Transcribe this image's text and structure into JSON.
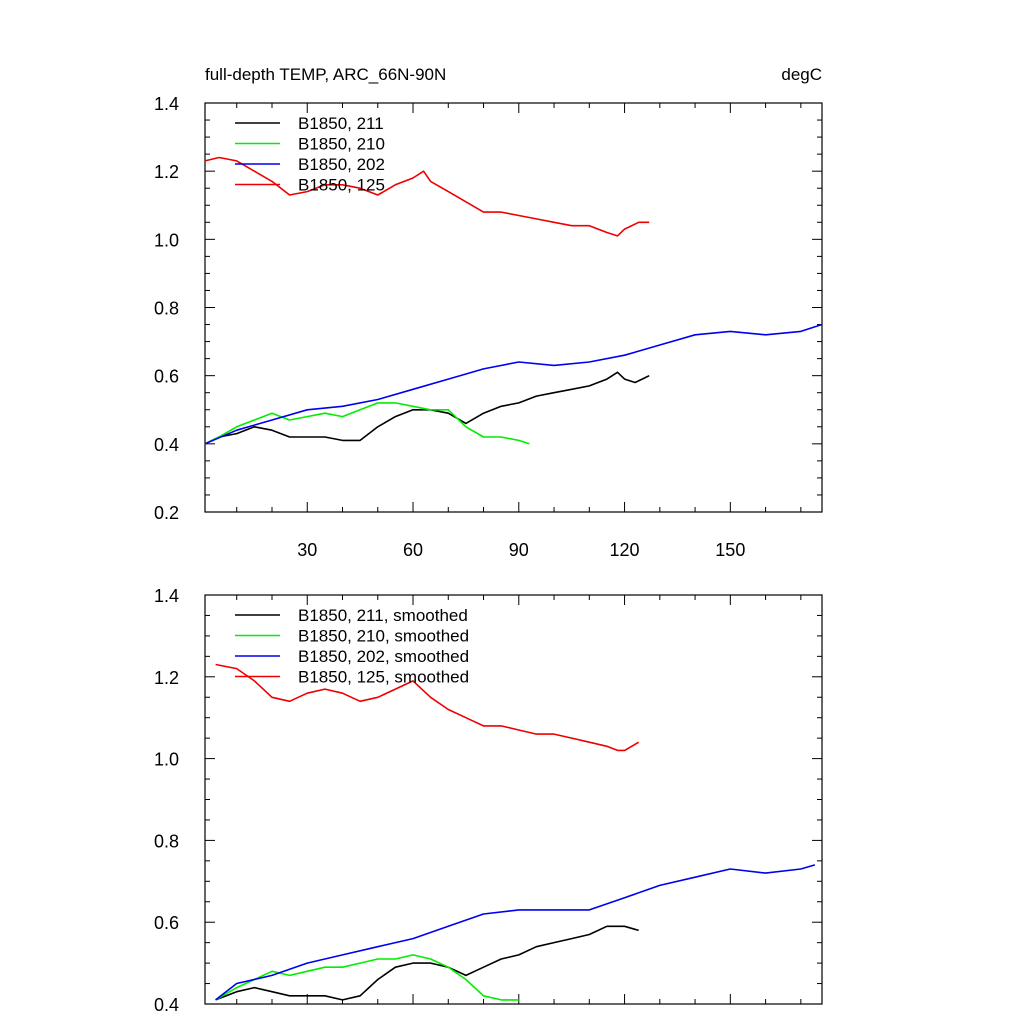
{
  "figure": {
    "title_left": "full-depth TEMP, ARC_66N-90N",
    "title_right": "degC"
  },
  "chart_data": [
    {
      "type": "line",
      "title": "full-depth TEMP, ARC_66N-90N",
      "units": "degC",
      "xlim": [
        1,
        176
      ],
      "ylim": [
        0.2,
        1.4
      ],
      "x_ticks": [
        30,
        60,
        90,
        120,
        150
      ],
      "y_ticks": [
        0.2,
        0.4,
        0.6,
        0.8,
        1.0,
        1.2,
        1.4
      ],
      "y_tick_labels": [
        "0.2",
        "0.4",
        "0.6",
        "0.8",
        "1.0",
        "1.2",
        "1.4"
      ],
      "legend_position": "top-left",
      "series": [
        {
          "name": "B1850, 211",
          "color": "#000000",
          "x": [
            1,
            5,
            10,
            15,
            20,
            25,
            30,
            35,
            40,
            45,
            50,
            55,
            60,
            65,
            70,
            75,
            80,
            85,
            90,
            95,
            100,
            105,
            110,
            115,
            118,
            120,
            123,
            125,
            127
          ],
          "y": [
            0.4,
            0.42,
            0.43,
            0.45,
            0.44,
            0.42,
            0.42,
            0.42,
            0.41,
            0.41,
            0.45,
            0.48,
            0.5,
            0.5,
            0.49,
            0.46,
            0.49,
            0.51,
            0.52,
            0.54,
            0.55,
            0.56,
            0.57,
            0.59,
            0.61,
            0.59,
            0.58,
            0.59,
            0.6
          ]
        },
        {
          "name": "B1850, 210",
          "color": "#00ee00",
          "x": [
            1,
            5,
            10,
            15,
            20,
            25,
            30,
            35,
            40,
            45,
            50,
            55,
            60,
            65,
            70,
            75,
            80,
            85,
            90,
            93
          ],
          "y": [
            0.4,
            0.42,
            0.45,
            0.47,
            0.49,
            0.47,
            0.48,
            0.49,
            0.48,
            0.5,
            0.52,
            0.52,
            0.51,
            0.5,
            0.5,
            0.45,
            0.42,
            0.42,
            0.41,
            0.4
          ]
        },
        {
          "name": "B1850, 202",
          "color": "#0000ee",
          "x": [
            1,
            10,
            20,
            30,
            40,
            50,
            60,
            70,
            80,
            90,
            100,
            110,
            120,
            130,
            140,
            150,
            160,
            170,
            176
          ],
          "y": [
            0.4,
            0.44,
            0.47,
            0.5,
            0.51,
            0.53,
            0.56,
            0.59,
            0.62,
            0.64,
            0.63,
            0.64,
            0.66,
            0.69,
            0.72,
            0.73,
            0.72,
            0.73,
            0.75
          ]
        },
        {
          "name": "B1850, 125",
          "color": "#ee0000",
          "x": [
            1,
            5,
            10,
            15,
            20,
            25,
            30,
            35,
            40,
            45,
            50,
            55,
            60,
            63,
            65,
            70,
            75,
            80,
            85,
            90,
            95,
            100,
            105,
            110,
            115,
            118,
            120,
            124,
            127
          ],
          "y": [
            1.23,
            1.24,
            1.23,
            1.2,
            1.17,
            1.13,
            1.14,
            1.16,
            1.16,
            1.15,
            1.13,
            1.16,
            1.18,
            1.2,
            1.17,
            1.14,
            1.11,
            1.08,
            1.08,
            1.07,
            1.06,
            1.05,
            1.04,
            1.04,
            1.02,
            1.01,
            1.03,
            1.05,
            1.05
          ]
        }
      ]
    },
    {
      "type": "line",
      "xlim": [
        1,
        176
      ],
      "ylim": [
        0.4,
        1.4
      ],
      "y_ticks": [
        0.4,
        0.6,
        0.8,
        1.0,
        1.2,
        1.4
      ],
      "y_tick_labels": [
        "0.4",
        "0.6",
        "0.8",
        "1.0",
        "1.2",
        "1.4"
      ],
      "legend_position": "top-left",
      "series": [
        {
          "name": "B1850, 211, smoothed",
          "color": "#000000",
          "x": [
            4,
            10,
            15,
            20,
            25,
            30,
            35,
            40,
            45,
            50,
            55,
            60,
            65,
            70,
            75,
            80,
            85,
            90,
            95,
            100,
            105,
            110,
            115,
            118,
            120,
            124
          ],
          "y": [
            0.41,
            0.43,
            0.44,
            0.43,
            0.42,
            0.42,
            0.42,
            0.41,
            0.42,
            0.46,
            0.49,
            0.5,
            0.5,
            0.49,
            0.47,
            0.49,
            0.51,
            0.52,
            0.54,
            0.55,
            0.56,
            0.57,
            0.59,
            0.59,
            0.59,
            0.58
          ]
        },
        {
          "name": "B1850, 210, smoothed",
          "color": "#00ee00",
          "x": [
            4,
            10,
            15,
            20,
            25,
            30,
            35,
            40,
            45,
            50,
            55,
            60,
            65,
            70,
            75,
            80,
            85,
            90
          ],
          "y": [
            0.41,
            0.44,
            0.46,
            0.48,
            0.47,
            0.48,
            0.49,
            0.49,
            0.5,
            0.51,
            0.51,
            0.52,
            0.51,
            0.49,
            0.46,
            0.42,
            0.41,
            0.41
          ]
        },
        {
          "name": "B1850, 202, smoothed",
          "color": "#0000ee",
          "x": [
            4,
            10,
            20,
            30,
            40,
            50,
            60,
            70,
            80,
            90,
            100,
            110,
            120,
            130,
            140,
            150,
            160,
            170,
            174
          ],
          "y": [
            0.41,
            0.45,
            0.47,
            0.5,
            0.52,
            0.54,
            0.56,
            0.59,
            0.62,
            0.63,
            0.63,
            0.63,
            0.66,
            0.69,
            0.71,
            0.73,
            0.72,
            0.73,
            0.74
          ]
        },
        {
          "name": "B1850, 125, smoothed",
          "color": "#ee0000",
          "x": [
            4,
            10,
            15,
            20,
            25,
            30,
            35,
            40,
            45,
            50,
            55,
            60,
            65,
            70,
            75,
            80,
            85,
            90,
            95,
            100,
            105,
            110,
            115,
            118,
            120,
            124
          ],
          "y": [
            1.23,
            1.22,
            1.19,
            1.15,
            1.14,
            1.16,
            1.17,
            1.16,
            1.14,
            1.15,
            1.17,
            1.19,
            1.15,
            1.12,
            1.1,
            1.08,
            1.08,
            1.07,
            1.06,
            1.06,
            1.05,
            1.04,
            1.03,
            1.02,
            1.02,
            1.04
          ]
        }
      ]
    }
  ]
}
